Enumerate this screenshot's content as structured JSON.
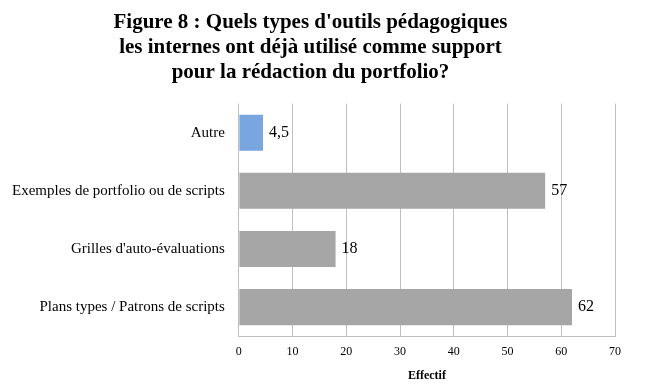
{
  "chart_data": {
    "type": "bar",
    "orientation": "horizontal",
    "title": [
      "Figure 8 : Quels types d'outils pédagogiques",
      "les internes ont déjà utilisé comme support",
      "pour la rédaction du portfolio?"
    ],
    "x_label": "Effectif",
    "categories": [
      "Autre",
      "Exemples de portfolio ou de scripts",
      "Grilles d'auto-évaluations",
      "Plans types / Patrons de scripts"
    ],
    "values": [
      4.5,
      57,
      18,
      62
    ],
    "value_labels": [
      "4,5",
      "57",
      "18",
      "62"
    ],
    "colors": [
      "#7aa6e0",
      "#a6a6a6",
      "#a6a6a6",
      "#a6a6a6"
    ],
    "xlim": [
      0,
      70
    ],
    "xticks": [
      0,
      10,
      20,
      30,
      40,
      50,
      60,
      70
    ],
    "grid": true,
    "data_labels": true
  }
}
